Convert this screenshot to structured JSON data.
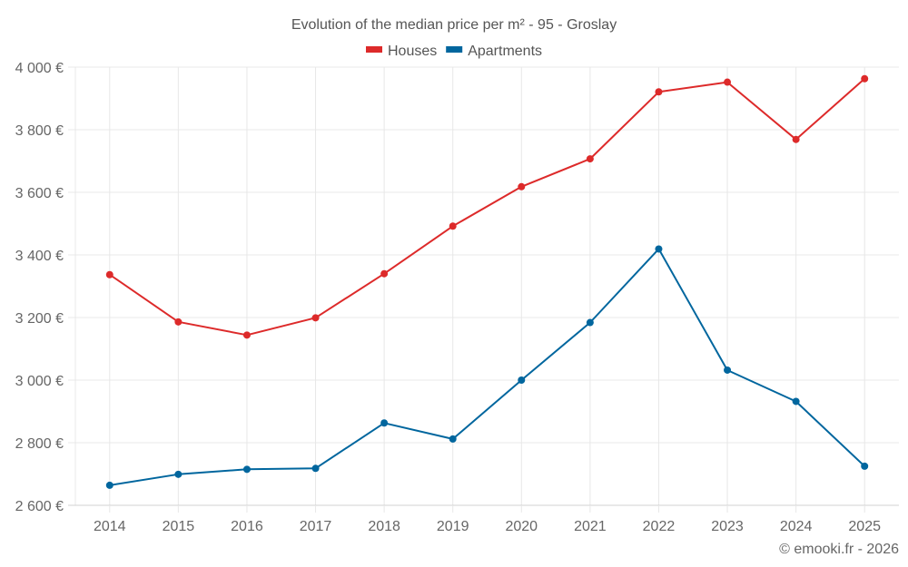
{
  "chart_data": {
    "type": "line",
    "title": "Evolution of the median price per m² - 95 - Groslay",
    "xlabel": "",
    "ylabel": "",
    "categories": [
      "2014",
      "2015",
      "2016",
      "2017",
      "2018",
      "2019",
      "2020",
      "2021",
      "2022",
      "2023",
      "2024",
      "2025"
    ],
    "series": [
      {
        "name": "Houses",
        "color": "#dd2a2a",
        "values": [
          3337,
          3186,
          3144,
          3199,
          3340,
          3492,
          3618,
          3707,
          3921,
          3952,
          3769,
          3963
        ]
      },
      {
        "name": "Apartments",
        "color": "#00669e",
        "values": [
          2664,
          2699,
          2715,
          2718,
          2863,
          2812,
          3000,
          3184,
          3419,
          3032,
          2932,
          2725
        ]
      }
    ],
    "ylim": [
      2600,
      4000
    ],
    "yticks": [
      2600,
      2800,
      3000,
      3200,
      3400,
      3600,
      3800,
      4000
    ],
    "ytick_labels": [
      "2 600 €",
      "2 800 €",
      "3 000 €",
      "3 200 €",
      "3 400 €",
      "3 600 €",
      "3 800 €",
      "4 000 €"
    ],
    "grid": true,
    "legend_position": "top-center",
    "credit": "© emooki.fr - 2026"
  }
}
